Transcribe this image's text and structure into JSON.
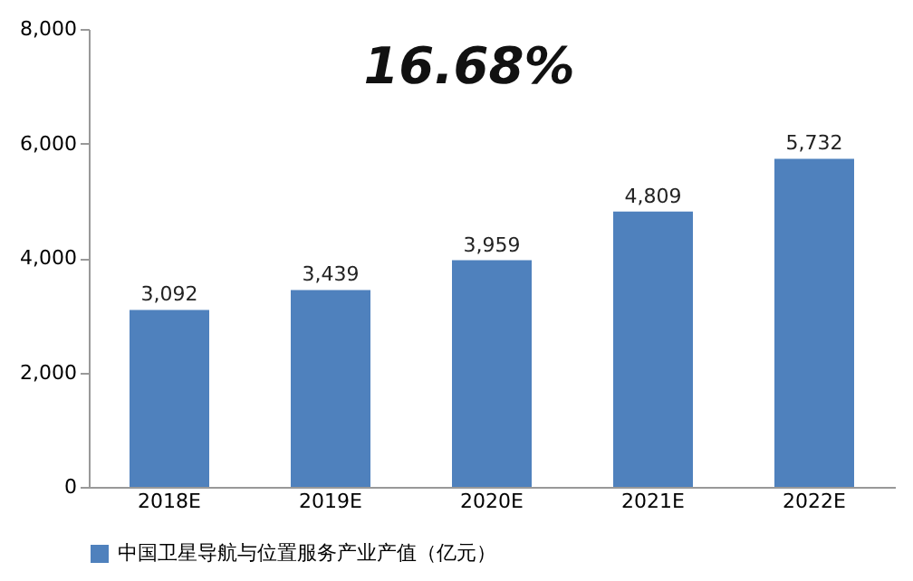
{
  "chart_data": {
    "type": "bar",
    "categories": [
      "2018E",
      "2019E",
      "2020E",
      "2021E",
      "2022E"
    ],
    "series": [
      {
        "name": "中国卫星导航与位置服务产业产值（亿元）",
        "color": "#4f81bd",
        "values": [
          3092,
          3439,
          3959,
          4809,
          5732
        ],
        "value_labels": [
          "3,092",
          "3,439",
          "3,959",
          "4,809",
          "5,732"
        ]
      }
    ],
    "ylim": [
      0,
      8000
    ],
    "yticks": [
      0,
      {
        "value": 2000,
        "label": "2,000"
      },
      {
        "value": 4000,
        "label": "4,000"
      },
      {
        "value": 6000,
        "label": "6,000"
      },
      {
        "value": 8000,
        "label": "8,000"
      }
    ],
    "annotations": [
      "16.68%"
    ],
    "grid": false,
    "legend": "bottom"
  }
}
